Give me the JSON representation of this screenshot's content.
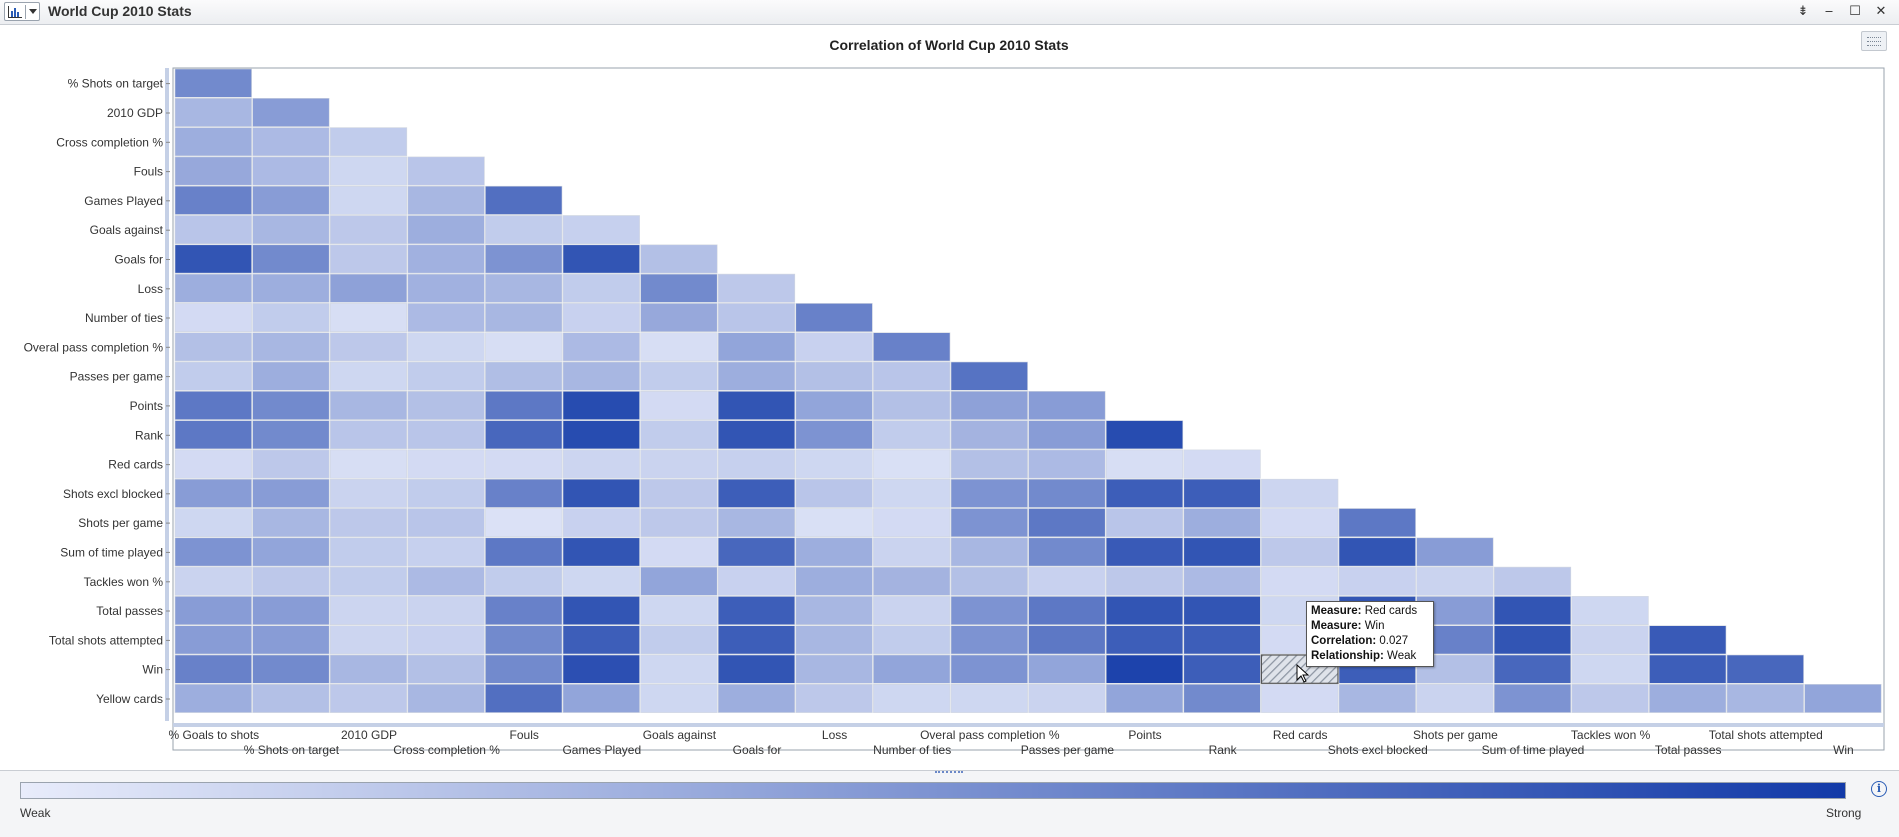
{
  "window": {
    "title": "World Cup 2010 Stats",
    "controls": [
      "pin-icon",
      "minimize-icon",
      "maximize-icon",
      "close-icon"
    ]
  },
  "chart_data": {
    "type": "heatmap",
    "title": "Correlation of World Cup 2010 Stats",
    "rows": [
      "% Shots on target",
      "2010 GDP",
      "Cross completion %",
      "Fouls",
      "Games Played",
      "Goals against",
      "Goals for",
      "Loss",
      "Number of ties",
      "Overal pass completion %",
      "Passes per game",
      "Points",
      "Rank",
      "Red cards",
      "Shots excl blocked",
      "Shots per game",
      "Sum of time played",
      "Tackles won %",
      "Total passes",
      "Total shots attempted",
      "Win",
      "Yellow cards"
    ],
    "columns": [
      "% Goals to shots",
      "% Shots on target",
      "2010 GDP",
      "Cross completion %",
      "Fouls",
      "Games Played",
      "Goals against",
      "Goals for",
      "Loss",
      "Number of ties",
      "Overal pass completion %",
      "Passes per game",
      "Points",
      "Rank",
      "Red cards",
      "Shots excl blocked",
      "Shots per game",
      "Sum of time played",
      "Tackles won %",
      "Total passes",
      "Total shots attempted",
      "Win"
    ],
    "x_tick_labels_row1": [
      "% Goals to shots",
      "2010 GDP",
      "Fouls",
      "Goals against",
      "Loss",
      "Overal pass completion %",
      "Points",
      "Red cards",
      "Shots per game",
      "Tackles won %",
      "Total shots attempted"
    ],
    "x_tick_labels_row2": [
      "% Shots on target",
      "Cross completion %",
      "Games Played",
      "Goals for",
      "Number of ties",
      "Passes per game",
      "Rank",
      "Shots excl blocked",
      "Sum of time played",
      "Total passes",
      "Win"
    ],
    "strength": [
      [
        0.55
      ],
      [
        0.3,
        0.45
      ],
      [
        0.35,
        0.28,
        0.18
      ],
      [
        0.38,
        0.28,
        0.12,
        0.22
      ],
      [
        0.6,
        0.45,
        0.12,
        0.3,
        0.7
      ],
      [
        0.22,
        0.3,
        0.2,
        0.35,
        0.18,
        0.16
      ],
      [
        0.85,
        0.55,
        0.2,
        0.33,
        0.5,
        0.85,
        0.25
      ],
      [
        0.35,
        0.35,
        0.42,
        0.33,
        0.3,
        0.18,
        0.55,
        0.2
      ],
      [
        0.1,
        0.18,
        0.08,
        0.28,
        0.3,
        0.15,
        0.38,
        0.22,
        0.6
      ],
      [
        0.25,
        0.3,
        0.2,
        0.12,
        0.08,
        0.28,
        0.08,
        0.4,
        0.15,
        0.6
      ],
      [
        0.18,
        0.35,
        0.12,
        0.18,
        0.26,
        0.3,
        0.18,
        0.35,
        0.25,
        0.22,
        0.68
      ],
      [
        0.65,
        0.55,
        0.3,
        0.25,
        0.65,
        0.9,
        0.1,
        0.85,
        0.4,
        0.25,
        0.42,
        0.45
      ],
      [
        0.65,
        0.55,
        0.22,
        0.22,
        0.75,
        0.9,
        0.18,
        0.85,
        0.5,
        0.18,
        0.32,
        0.45,
        0.9
      ],
      [
        0.1,
        0.2,
        0.08,
        0.1,
        0.1,
        0.13,
        0.14,
        0.16,
        0.12,
        0.07,
        0.25,
        0.28,
        0.08,
        0.1
      ],
      [
        0.45,
        0.45,
        0.14,
        0.18,
        0.6,
        0.85,
        0.2,
        0.8,
        0.22,
        0.12,
        0.5,
        0.55,
        0.8,
        0.8,
        0.13
      ],
      [
        0.12,
        0.3,
        0.2,
        0.22,
        0.06,
        0.15,
        0.2,
        0.3,
        0.07,
        0.1,
        0.5,
        0.65,
        0.22,
        0.35,
        0.1,
        0.65
      ],
      [
        0.5,
        0.4,
        0.18,
        0.16,
        0.65,
        0.85,
        0.1,
        0.75,
        0.35,
        0.14,
        0.3,
        0.55,
        0.82,
        0.85,
        0.2,
        0.85,
        0.45
      ],
      [
        0.14,
        0.2,
        0.18,
        0.28,
        0.18,
        0.12,
        0.4,
        0.15,
        0.35,
        0.32,
        0.25,
        0.15,
        0.2,
        0.28,
        0.1,
        0.15,
        0.14,
        0.2
      ],
      [
        0.45,
        0.45,
        0.13,
        0.14,
        0.6,
        0.85,
        0.12,
        0.8,
        0.3,
        0.14,
        0.5,
        0.65,
        0.85,
        0.85,
        0.12,
        0.85,
        0.45,
        0.85,
        0.12
      ],
      [
        0.45,
        0.45,
        0.13,
        0.15,
        0.55,
        0.8,
        0.18,
        0.8,
        0.3,
        0.18,
        0.5,
        0.65,
        0.8,
        0.8,
        0.1,
        0.85,
        0.6,
        0.85,
        0.14,
        0.82
      ],
      [
        0.6,
        0.55,
        0.3,
        0.25,
        0.55,
        0.88,
        0.12,
        0.85,
        0.3,
        0.4,
        0.5,
        0.4,
        0.95,
        0.8,
        0.027,
        0.8,
        0.25,
        0.75,
        0.12,
        0.8,
        0.75
      ],
      [
        0.35,
        0.25,
        0.2,
        0.3,
        0.7,
        0.4,
        0.12,
        0.35,
        0.2,
        0.12,
        0.12,
        0.14,
        0.4,
        0.55,
        0.1,
        0.3,
        0.14,
        0.5,
        0.2,
        0.35,
        0.3,
        0.4
      ]
    ],
    "highlighted_cell": {
      "row": "Win",
      "column": "Red cards"
    },
    "legend": {
      "min_label": "Weak",
      "max_label": "Strong",
      "colors": [
        "#e8ecfb",
        "#123aa8"
      ]
    }
  },
  "tooltip": {
    "lines": [
      {
        "key": "Measure:",
        "value": "Red cards"
      },
      {
        "key": "Measure:",
        "value": "Win"
      },
      {
        "key": "Correlation:",
        "value": "0.027"
      },
      {
        "key": "Relationship:",
        "value": "Weak"
      }
    ]
  }
}
